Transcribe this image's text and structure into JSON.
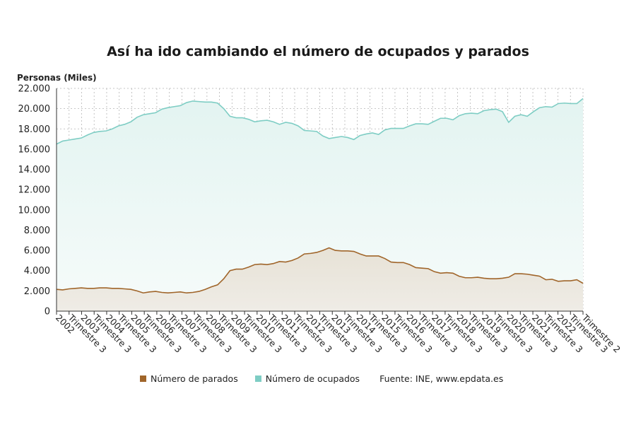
{
  "title": "Así ha ido cambiando el número de ocupados y parados",
  "unit_label": "Personas (Miles)",
  "source": "Fuente: INE, www.epdata.es",
  "colors": {
    "ocupados": "#7ecdc4",
    "parados": "#a0652a",
    "grid": "#b5b5b5",
    "axis": "#333333"
  },
  "chart_data": {
    "type": "area",
    "ylim": [
      0,
      22000
    ],
    "yticks": [
      "0",
      "2.000",
      "4.000",
      "6.000",
      "8.000",
      "10.000",
      "12.000",
      "14.000",
      "16.000",
      "18.000",
      "20.000",
      "22.000"
    ],
    "ytick_values": [
      0,
      2000,
      4000,
      6000,
      8000,
      10000,
      12000,
      14000,
      16000,
      18000,
      20000,
      22000
    ],
    "xtick_labels": [
      "2002",
      "Trimestre 3",
      "2003",
      "Trimestre 3",
      "2004",
      "Trimestre 3",
      "2005",
      "Trimestre 3",
      "2006",
      "Trimestre 3",
      "2007",
      "Trimestre 3",
      "2008",
      "Trimestre 3",
      "2009",
      "Trimestre 3",
      "2010",
      "Trimestre 3",
      "2011",
      "Trimestre 3",
      "2012",
      "Trimestre 3",
      "2013",
      "Trimestre 3",
      "2014",
      "Trimestre 3",
      "2015",
      "Trimestre 3",
      "2016",
      "Trimestre 3",
      "2017",
      "Trimestre 3",
      "2018",
      "Trimestre 3",
      "2019",
      "Trimestre 3",
      "2020",
      "Trimestre 3",
      "2021",
      "Trimestre 3",
      "2022",
      "Trimestre 3",
      "Trimestre 2"
    ],
    "series": [
      {
        "name": "Número de ocupados",
        "values": [
          16500,
          16800,
          16900,
          17000,
          17100,
          17400,
          17650,
          17750,
          17800,
          18000,
          18300,
          18450,
          18700,
          19150,
          19400,
          19500,
          19600,
          19950,
          20100,
          20200,
          20300,
          20600,
          20750,
          20700,
          20650,
          20650,
          20550,
          20000,
          19250,
          19100,
          19100,
          18950,
          18700,
          18800,
          18850,
          18700,
          18450,
          18650,
          18550,
          18300,
          17850,
          17800,
          17750,
          17300,
          17050,
          17150,
          17250,
          17150,
          16950,
          17350,
          17500,
          17600,
          17450,
          17900,
          18050,
          18050,
          18050,
          18300,
          18500,
          18500,
          18450,
          18750,
          19050,
          19050,
          18900,
          19300,
          19500,
          19550,
          19500,
          19800,
          19900,
          19950,
          19700,
          18650,
          19250,
          19400,
          19250,
          19700,
          20100,
          20200,
          20150,
          20500,
          20550,
          20500,
          20500,
          21000
        ]
      },
      {
        "name": "Número de parados",
        "values": [
          2150,
          2100,
          2200,
          2250,
          2300,
          2250,
          2250,
          2300,
          2300,
          2250,
          2250,
          2200,
          2150,
          2000,
          1800,
          1900,
          1950,
          1850,
          1800,
          1850,
          1900,
          1800,
          1850,
          1950,
          2150,
          2400,
          2600,
          3200,
          4000,
          4150,
          4150,
          4350,
          4600,
          4650,
          4600,
          4700,
          4900,
          4850,
          5000,
          5250,
          5650,
          5700,
          5800,
          6000,
          6250,
          6000,
          5950,
          5950,
          5900,
          5650,
          5450,
          5450,
          5450,
          5200,
          4850,
          4800,
          4800,
          4600,
          4300,
          4250,
          4200,
          3900,
          3750,
          3800,
          3750,
          3450,
          3300,
          3300,
          3350,
          3250,
          3200,
          3200,
          3250,
          3350,
          3700,
          3700,
          3650,
          3550,
          3450,
          3100,
          3150,
          2950,
          3000,
          3000,
          3100,
          2750
        ]
      }
    ],
    "grid": true,
    "legend": "bottom"
  }
}
